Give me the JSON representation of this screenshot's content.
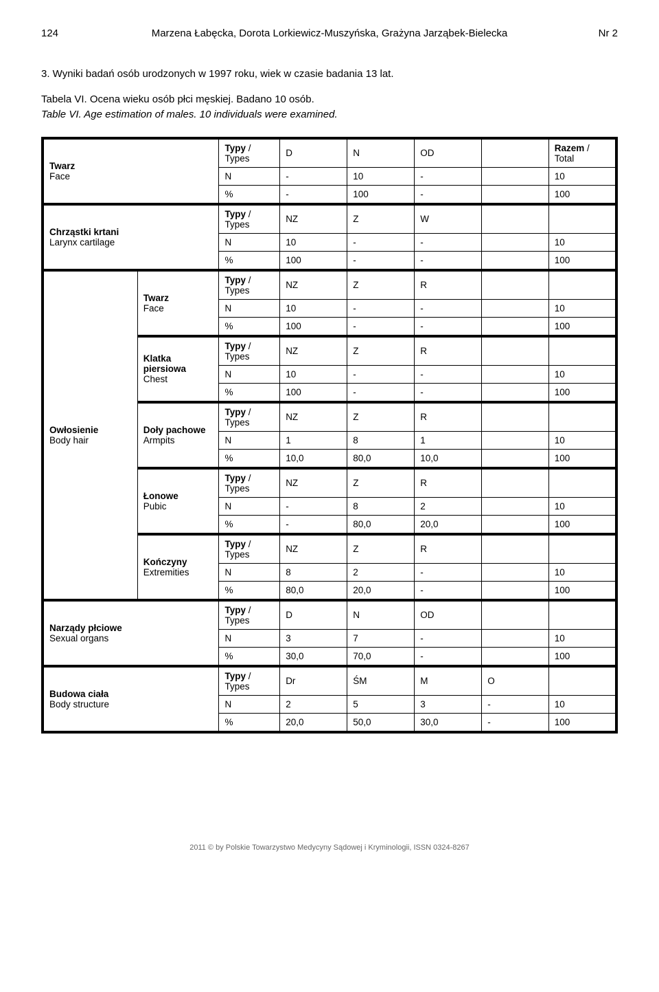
{
  "header": {
    "page_left": "124",
    "authors": "Marzena Łabęcka, Dorota Lorkiewicz-Muszyńska, Grażyna Jarząbek-Bielecka",
    "page_right": "Nr 2"
  },
  "caption": {
    "line1": "3. Wyniki badań osób urodzonych w 1997 roku, wiek w czasie badania 13 lat.",
    "line2": "Tabela VI. Ocena wieku osób płci męskiej. Badano 10 osób.",
    "line3": "Table VI.   Age estimation of males. 10 individuals were examined."
  },
  "groups": [
    {
      "label1_pl": "Twarz",
      "label1_en": "Face",
      "label2_pl": "",
      "label2_en": "",
      "rows": [
        {
          "key_bold": true,
          "key": "Typy / Types",
          "c1": "D",
          "c2": "N",
          "c3": "OD",
          "c4": "",
          "last_bold": true,
          "last": "Razem / Total"
        },
        {
          "key": "N",
          "c1": "-",
          "c2": "10",
          "c3": "-",
          "c4": "",
          "last": "10"
        },
        {
          "key": "%",
          "c1": "-",
          "c2": "100",
          "c3": "-",
          "c4": "",
          "last": "100"
        }
      ]
    },
    {
      "label1_pl": "Chrząstki krtani",
      "label1_en": "Larynx cartilage",
      "label2_pl": "",
      "label2_en": "",
      "rows": [
        {
          "key_bold": true,
          "key": "Typy / Types",
          "c1": "NZ",
          "c2": "Z",
          "c3": "W",
          "c4": "",
          "last": ""
        },
        {
          "key": "N",
          "c1": "10",
          "c2": "-",
          "c3": "-",
          "c4": "",
          "last": "10"
        },
        {
          "key": "%",
          "c1": "100",
          "c2": "-",
          "c3": "-",
          "c4": "",
          "last": "100"
        }
      ]
    },
    {
      "label1_pl": "",
      "label1_en": "",
      "label2_pl": "Twarz",
      "label2_en": "Face",
      "rows": [
        {
          "key_bold": true,
          "key": "Typy / Types",
          "c1": "NZ",
          "c2": "Z",
          "c3": "R",
          "c4": "",
          "last": ""
        },
        {
          "key": "N",
          "c1": "10",
          "c2": "-",
          "c3": "-",
          "c4": "",
          "last": "10"
        },
        {
          "key": "%",
          "c1": "100",
          "c2": "-",
          "c3": "-",
          "c4": "",
          "last": "100"
        }
      ]
    },
    {
      "label1_pl": "",
      "label1_en": "",
      "label2_pl": "Klatka piersiowa",
      "label2_en": "Chest",
      "rows": [
        {
          "key_bold": true,
          "key": "Typy / Types",
          "c1": "NZ",
          "c2": "Z",
          "c3": "R",
          "c4": "",
          "last": ""
        },
        {
          "key": "N",
          "c1": "10",
          "c2": "-",
          "c3": "-",
          "c4": "",
          "last": "10"
        },
        {
          "key": "%",
          "c1": "100",
          "c2": "-",
          "c3": "-",
          "c4": "",
          "last": "100"
        }
      ]
    },
    {
      "label1_pl": "Owłosienie",
      "label1_en": "Body hair",
      "label2_pl": "Doły pachowe",
      "label2_en": "Armpits",
      "rows": [
        {
          "key_bold": true,
          "key": "Typy / Types",
          "c1": "NZ",
          "c2": "Z",
          "c3": "R",
          "c4": "",
          "last": ""
        },
        {
          "key": "N",
          "c1": "1",
          "c2": "8",
          "c3": "1",
          "c4": "",
          "last": "10"
        },
        {
          "key": "%",
          "c1": "10,0",
          "c2": "80,0",
          "c3": "10,0",
          "c4": "",
          "last": "100"
        }
      ]
    },
    {
      "label1_pl": "",
      "label1_en": "",
      "label2_pl": "Łonowe",
      "label2_en": "Pubic",
      "rows": [
        {
          "key_bold": true,
          "key": "Typy / Types",
          "c1": "NZ",
          "c2": "Z",
          "c3": "R",
          "c4": "",
          "last": ""
        },
        {
          "key": "N",
          "c1": "-",
          "c2": "8",
          "c3": "2",
          "c4": "",
          "last": "10"
        },
        {
          "key": "%",
          "c1": "-",
          "c2": "80,0",
          "c3": "20,0",
          "c4": "",
          "last": "100"
        }
      ]
    },
    {
      "label1_pl": "",
      "label1_en": "",
      "label2_pl": "Kończyny",
      "label2_en": "Extremities",
      "rows": [
        {
          "key_bold": true,
          "key": "Typy / Types",
          "c1": "NZ",
          "c2": "Z",
          "c3": "R",
          "c4": "",
          "last": ""
        },
        {
          "key": "N",
          "c1": "8",
          "c2": "2",
          "c3": "-",
          "c4": "",
          "last": "10"
        },
        {
          "key": "%",
          "c1": "80,0",
          "c2": "20,0",
          "c3": "-",
          "c4": "",
          "last": "100"
        }
      ]
    },
    {
      "label1_pl": "Narządy płciowe",
      "label1_en": "Sexual organs",
      "label2_pl": "",
      "label2_en": "",
      "rows": [
        {
          "key_bold": true,
          "key": "Typy / Types",
          "c1": "D",
          "c2": "N",
          "c3": "OD",
          "c4": "",
          "last": ""
        },
        {
          "key": "N",
          "c1": "3",
          "c2": "7",
          "c3": "-",
          "c4": "",
          "last": "10"
        },
        {
          "key": "%",
          "c1": "30,0",
          "c2": "70,0",
          "c3": "-",
          "c4": "",
          "last": "100"
        }
      ]
    },
    {
      "label1_pl": "Budowa ciała",
      "label1_en": "Body structure",
      "label2_pl": "",
      "label2_en": "",
      "rows": [
        {
          "key_bold": true,
          "key": "Typy / Types",
          "c1": "Dr",
          "c2": "ŚM",
          "c3": "M",
          "c4": "O",
          "last": ""
        },
        {
          "key": "N",
          "c1": "2",
          "c2": "5",
          "c3": "3",
          "c4": "-",
          "last": "10"
        },
        {
          "key": "%",
          "c1": "20,0",
          "c2": "50,0",
          "c3": "30,0",
          "c4": "-",
          "last": "100"
        }
      ]
    }
  ],
  "footer": "2011 © by Polskie Towarzystwo Medycyny Sądowej i Kryminologii, ISSN 0324-8267",
  "owlosienie_left_span_start_group": 2,
  "owlosienie_left_span_groups": 5
}
